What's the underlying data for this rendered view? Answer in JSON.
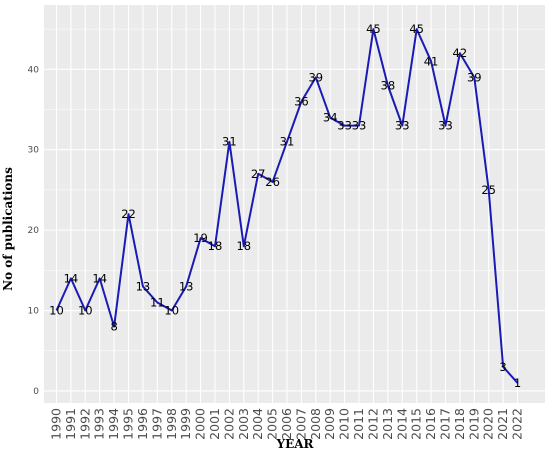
{
  "chart_data": {
    "type": "line",
    "xlabel": "YEAR",
    "ylabel": "No of publications",
    "x": [
      "1990",
      "1991",
      "1992",
      "1993",
      "1994",
      "1995",
      "1996",
      "1997",
      "1998",
      "1999",
      "2000",
      "2001",
      "2002",
      "2003",
      "2004",
      "2005",
      "2006",
      "2007",
      "2008",
      "2009",
      "2010",
      "2011",
      "2012",
      "2013",
      "2014",
      "2015",
      "2016",
      "2017",
      "2018",
      "2019",
      "2020",
      "2021",
      "2022"
    ],
    "series": [
      {
        "values": [
          10,
          14,
          10,
          14,
          8,
          22,
          13,
          11,
          10,
          13,
          19,
          18,
          31,
          18,
          27,
          26,
          31,
          36,
          39,
          34,
          33,
          33,
          45,
          38,
          33,
          45,
          41,
          33,
          42,
          39,
          25,
          3,
          1
        ],
        "labels": [
          "10",
          "14",
          "10",
          "14",
          "8",
          "22",
          "13",
          "11",
          "10",
          "13",
          "19",
          "18",
          "31",
          "18",
          "27",
          "26",
          "31",
          "36",
          "39",
          "34",
          "33",
          "33",
          "45",
          "38",
          "33",
          "45",
          "41",
          "33",
          "42",
          "39",
          "25",
          "3",
          "1"
        ]
      }
    ],
    "yticks": [
      0,
      10,
      20,
      30,
      40
    ],
    "ylim": [
      -1.5,
      48
    ],
    "grid": true,
    "background_color": "#ebebeb",
    "grid_color": "#ffffff",
    "line_color": "#1a1ab5"
  }
}
